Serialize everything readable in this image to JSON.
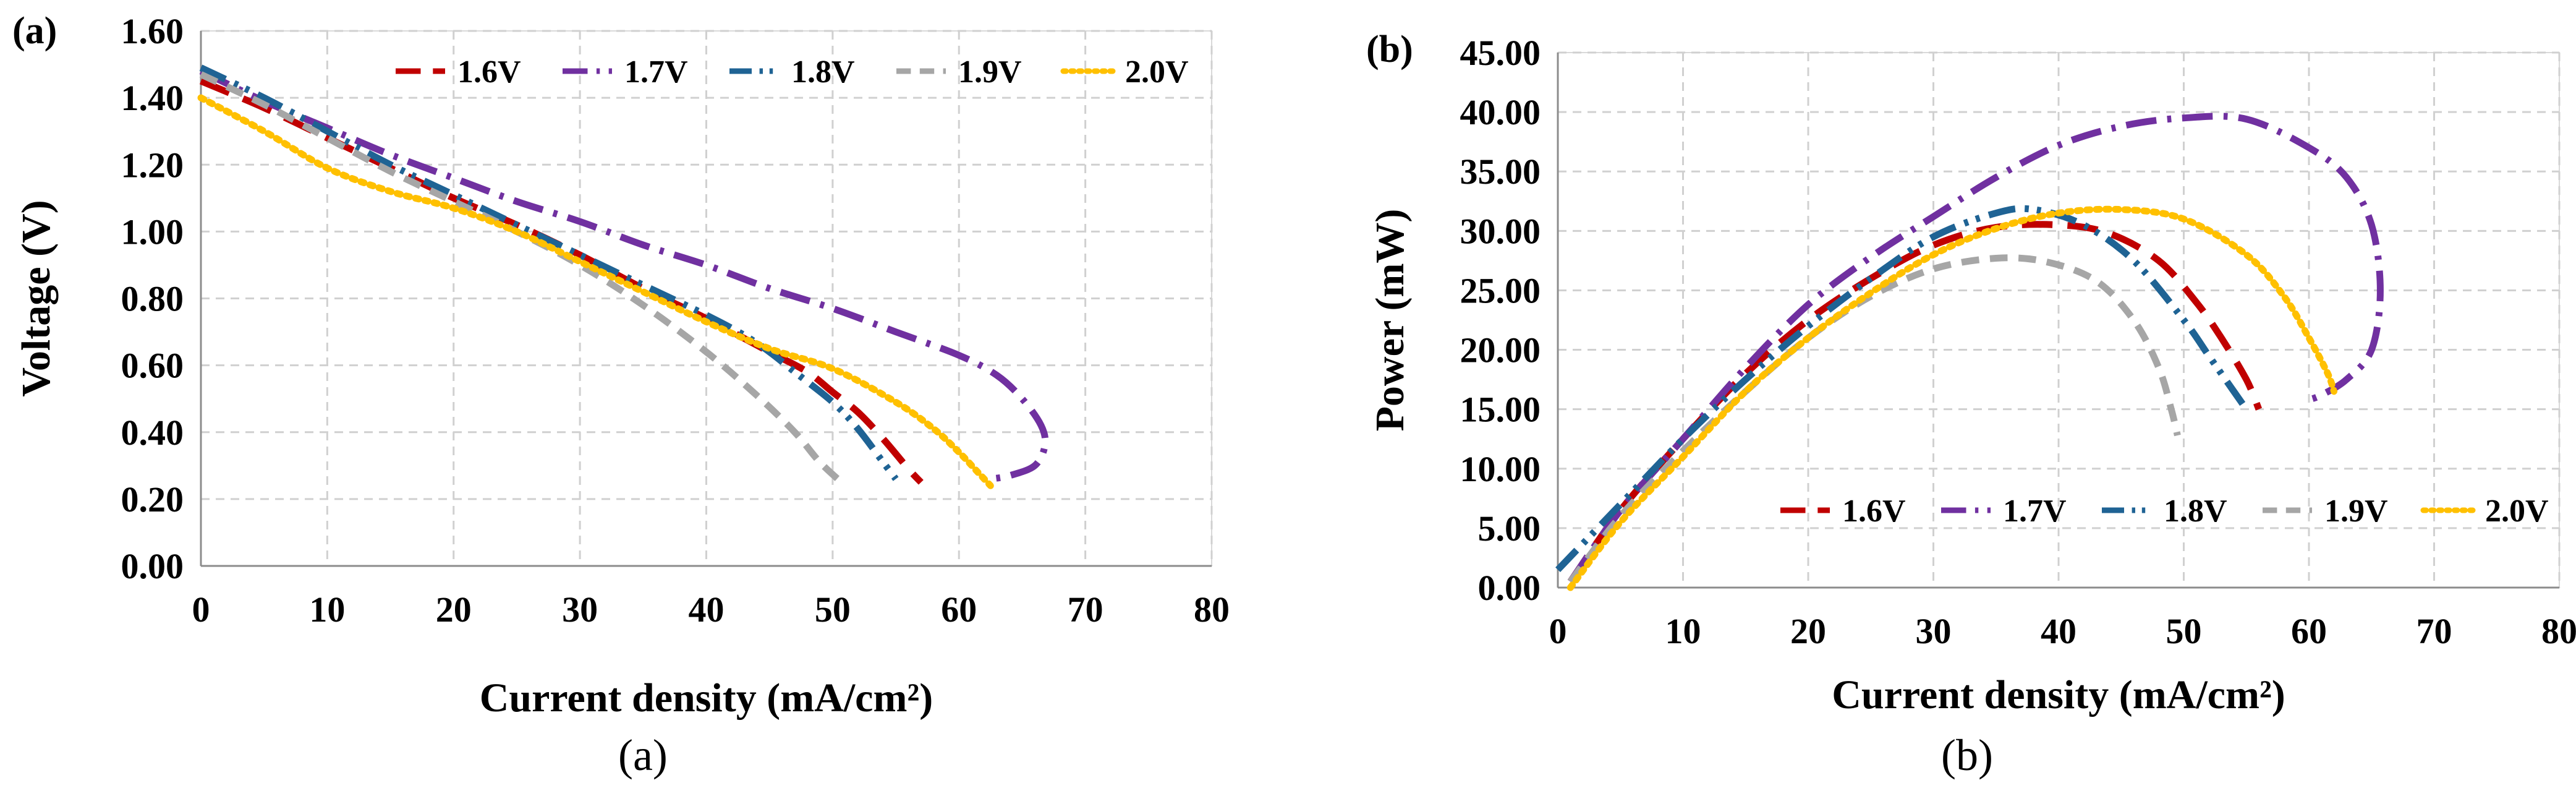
{
  "chart_data": [
    {
      "type": "line",
      "panel_label": "(a)",
      "caption": "(a)",
      "title": "",
      "xlabel": "Current density (mA/cm²)",
      "ylabel": "Voltage (V)",
      "xlim": [
        0,
        80
      ],
      "ylim": [
        0,
        1.6
      ],
      "xticks": [
        "0",
        "10",
        "20",
        "30",
        "40",
        "50",
        "60",
        "70",
        "80"
      ],
      "yticks": [
        "0.00",
        "0.20",
        "0.40",
        "0.60",
        "0.80",
        "1.00",
        "1.20",
        "1.40",
        "1.60"
      ],
      "grid": true,
      "legend_position": "top-right",
      "series": [
        {
          "name": "1.6V",
          "color": "#c00000",
          "dash": "long-dash",
          "x": [
            0,
            5,
            10,
            15,
            20,
            25,
            30,
            35,
            40,
            45,
            48,
            50,
            52,
            54,
            56,
            57
          ],
          "y": [
            1.45,
            1.37,
            1.28,
            1.19,
            1.1,
            1.02,
            0.93,
            0.83,
            0.74,
            0.64,
            0.58,
            0.52,
            0.46,
            0.38,
            0.29,
            0.25
          ]
        },
        {
          "name": "1.7V",
          "color": "#7030a0",
          "dash": "dash-dot",
          "x": [
            0,
            5,
            10,
            15,
            20,
            25,
            30,
            35,
            40,
            45,
            50,
            55,
            60,
            63,
            65,
            66.5,
            66.8,
            66,
            64,
            62.5
          ],
          "y": [
            1.48,
            1.39,
            1.31,
            1.23,
            1.16,
            1.09,
            1.03,
            0.96,
            0.9,
            0.83,
            0.77,
            0.7,
            0.63,
            0.57,
            0.5,
            0.42,
            0.36,
            0.3,
            0.27,
            0.26
          ]
        },
        {
          "name": "1.8V",
          "color": "#1f6394",
          "dash": "dash-dot-dot",
          "x": [
            0,
            5,
            10,
            15,
            20,
            25,
            30,
            35,
            40,
            43,
            45,
            47,
            50,
            52,
            54,
            55
          ],
          "y": [
            1.49,
            1.4,
            1.3,
            1.2,
            1.11,
            1.02,
            0.93,
            0.84,
            0.75,
            0.69,
            0.64,
            0.58,
            0.49,
            0.41,
            0.31,
            0.26
          ]
        },
        {
          "name": "1.9V",
          "color": "#a6a6a6",
          "dash": "dash",
          "x": [
            0,
            5,
            10,
            15,
            20,
            25,
            30,
            35,
            40,
            44,
            47,
            49,
            51
          ],
          "y": [
            1.47,
            1.38,
            1.28,
            1.18,
            1.09,
            1.0,
            0.9,
            0.78,
            0.64,
            0.51,
            0.4,
            0.31,
            0.24
          ]
        },
        {
          "name": "2.0V",
          "color": "#ffc000",
          "dash": "dot",
          "x": [
            0,
            5,
            10,
            15,
            20,
            25,
            30,
            35,
            40,
            45,
            50,
            55,
            58,
            60,
            61.5,
            62.5
          ],
          "y": [
            1.4,
            1.3,
            1.19,
            1.12,
            1.07,
            1.0,
            0.91,
            0.82,
            0.73,
            0.65,
            0.59,
            0.49,
            0.41,
            0.34,
            0.28,
            0.24
          ]
        }
      ]
    },
    {
      "type": "line",
      "panel_label": "(b)",
      "caption": "(b)",
      "title": "",
      "xlabel": "Current density (mA/cm²)",
      "ylabel": "Power (mW)",
      "xlim": [
        0,
        80
      ],
      "ylim": [
        0,
        45
      ],
      "xticks": [
        "0",
        "10",
        "20",
        "30",
        "40",
        "50",
        "60",
        "70",
        "80"
      ],
      "yticks": [
        "0.00",
        "5.00",
        "10.00",
        "15.00",
        "20.00",
        "25.00",
        "30.00",
        "35.00",
        "40.00",
        "45.00"
      ],
      "grid": true,
      "legend_position": "bottom-right",
      "series": [
        {
          "name": "1.6V",
          "color": "#c00000",
          "dash": "long-dash",
          "x": [
            1,
            5,
            10,
            15,
            20,
            25,
            30,
            35,
            40,
            44,
            48,
            51,
            53,
            55,
            56
          ],
          "y": [
            0.5,
            6.5,
            12.5,
            18.0,
            22.5,
            26.0,
            28.8,
            30.3,
            30.5,
            29.8,
            27.5,
            24.0,
            21.0,
            17.5,
            15.0
          ]
        },
        {
          "name": "1.7V",
          "color": "#7030a0",
          "dash": "dash-dot",
          "x": [
            1,
            5,
            10,
            15,
            20,
            25,
            30,
            35,
            40,
            45,
            50,
            55,
            60,
            63,
            65,
            65.7,
            65,
            63,
            61,
            60
          ],
          "y": [
            0.5,
            6.5,
            12.5,
            18.5,
            23.8,
            27.8,
            31.2,
            34.5,
            37.2,
            38.8,
            39.5,
            39.4,
            37.0,
            34.5,
            30.5,
            25.0,
            20.0,
            17.5,
            16.2,
            15.8
          ]
        },
        {
          "name": "1.8V",
          "color": "#1f6394",
          "dash": "dash-dot-dot",
          "x": [
            0,
            5,
            10,
            15,
            20,
            25,
            30,
            35,
            38,
            42,
            46,
            50,
            52,
            54,
            55
          ],
          "y": [
            1.5,
            7.0,
            12.5,
            17.5,
            22.0,
            26.0,
            29.5,
            31.5,
            31.8,
            30.5,
            27.5,
            22.5,
            19.5,
            16.5,
            15.0
          ]
        },
        {
          "name": "1.9V",
          "color": "#a6a6a6",
          "dash": "dash",
          "x": [
            1,
            5,
            10,
            15,
            20,
            25,
            30,
            35,
            39,
            43,
            46,
            48,
            49,
            49.5
          ],
          "y": [
            0.5,
            6.0,
            11.5,
            16.5,
            21.0,
            24.5,
            26.8,
            27.7,
            27.4,
            25.8,
            22.5,
            18.5,
            15.0,
            12.8
          ]
        },
        {
          "name": "2.0V",
          "color": "#ffc000",
          "dash": "dot",
          "x": [
            1,
            5,
            10,
            15,
            20,
            25,
            30,
            35,
            40,
            45,
            50,
            55,
            58,
            60,
            61.5,
            62
          ],
          "y": [
            0,
            5.5,
            11.0,
            16.5,
            21.0,
            24.8,
            28.0,
            30.2,
            31.5,
            31.8,
            31.0,
            28.0,
            24.5,
            21.0,
            18.0,
            16.5
          ]
        }
      ]
    }
  ]
}
